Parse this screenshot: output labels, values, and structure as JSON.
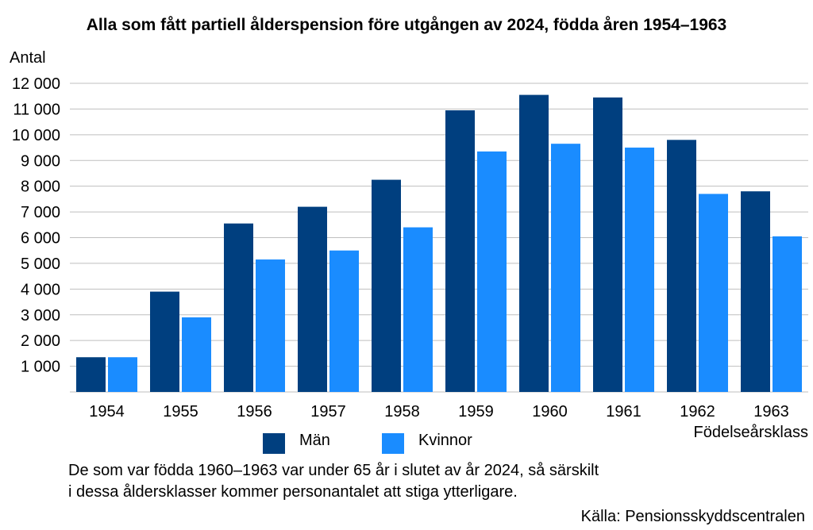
{
  "chart_data": {
    "type": "bar",
    "title": "Alla som fått partiell ålderspension före utgången av 2024, födda åren 1954–1963",
    "ylabel": "Antal",
    "xlabel": "Födelseårsklass",
    "categories": [
      "1954",
      "1955",
      "1956",
      "1957",
      "1958",
      "1959",
      "1960",
      "1961",
      "1962",
      "1963"
    ],
    "series": [
      {
        "name": "Män",
        "color": "#003f7f",
        "values": [
          1350,
          3900,
          6550,
          7200,
          8250,
          10950,
          11550,
          11450,
          9800,
          7800
        ]
      },
      {
        "name": "Kvinnor",
        "color": "#1a8cff",
        "values": [
          1350,
          2900,
          5150,
          5500,
          6400,
          9350,
          9650,
          9500,
          7700,
          6050
        ]
      }
    ],
    "ylim": [
      0,
      12000
    ],
    "yticks": [
      1000,
      2000,
      3000,
      4000,
      5000,
      6000,
      7000,
      8000,
      9000,
      10000,
      11000,
      12000
    ],
    "ytick_labels": [
      "1 000",
      "2 000",
      "3 000",
      "4 000",
      "5 000",
      "6 000",
      "7 000",
      "8 000",
      "9 000",
      "10 000",
      "11 000",
      "12 000"
    ],
    "grid": true,
    "legend_position": "bottom"
  },
  "note": {
    "line1": "De som var födda 1960–1963 var under 65 år i slutet av år 2024, så särskilt",
    "line2": "i dessa åldersklasser kommer personantalet att stiga ytterligare."
  },
  "source": "Källa: Pensionsskyddscentralen"
}
